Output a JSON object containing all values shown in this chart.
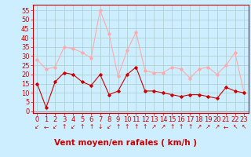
{
  "hours": [
    0,
    1,
    2,
    3,
    4,
    5,
    6,
    7,
    8,
    9,
    10,
    11,
    12,
    13,
    14,
    15,
    16,
    17,
    18,
    19,
    20,
    21,
    22,
    23
  ],
  "wind_avg": [
    15,
    2,
    16,
    21,
    20,
    16,
    14,
    20,
    9,
    11,
    20,
    24,
    11,
    11,
    10,
    9,
    8,
    9,
    9,
    8,
    7,
    13,
    11,
    10
  ],
  "wind_gust": [
    28,
    23,
    24,
    35,
    34,
    32,
    29,
    55,
    42,
    19,
    33,
    43,
    22,
    21,
    21,
    24,
    23,
    18,
    23,
    24,
    20,
    25,
    32,
    10
  ],
  "avg_color": "#cc0000",
  "gust_color": "#ffaaaa",
  "bg_color": "#cceeff",
  "grid_color": "#aacccc",
  "xlabel": "Vent moyen/en rafales ( km/h )",
  "xlabel_color": "#cc0000",
  "yticks": [
    0,
    5,
    10,
    15,
    20,
    25,
    30,
    35,
    40,
    45,
    50,
    55
  ],
  "ylim": [
    -1,
    58
  ],
  "xlim": [
    -0.5,
    23.5
  ],
  "tick_color": "#cc0000",
  "label_fontsize": 6.0,
  "xlabel_fontsize": 7.5,
  "arrow_symbols": [
    "↙",
    "←",
    "↙",
    "↑",
    "↙",
    "↑",
    "↑",
    "↓",
    "↙",
    "↑",
    "↑",
    "↑",
    "↑",
    "↗",
    "↗",
    "↑",
    "↑",
    "↑",
    "↗",
    "↗",
    "↗",
    "←",
    "↖",
    "↖"
  ]
}
